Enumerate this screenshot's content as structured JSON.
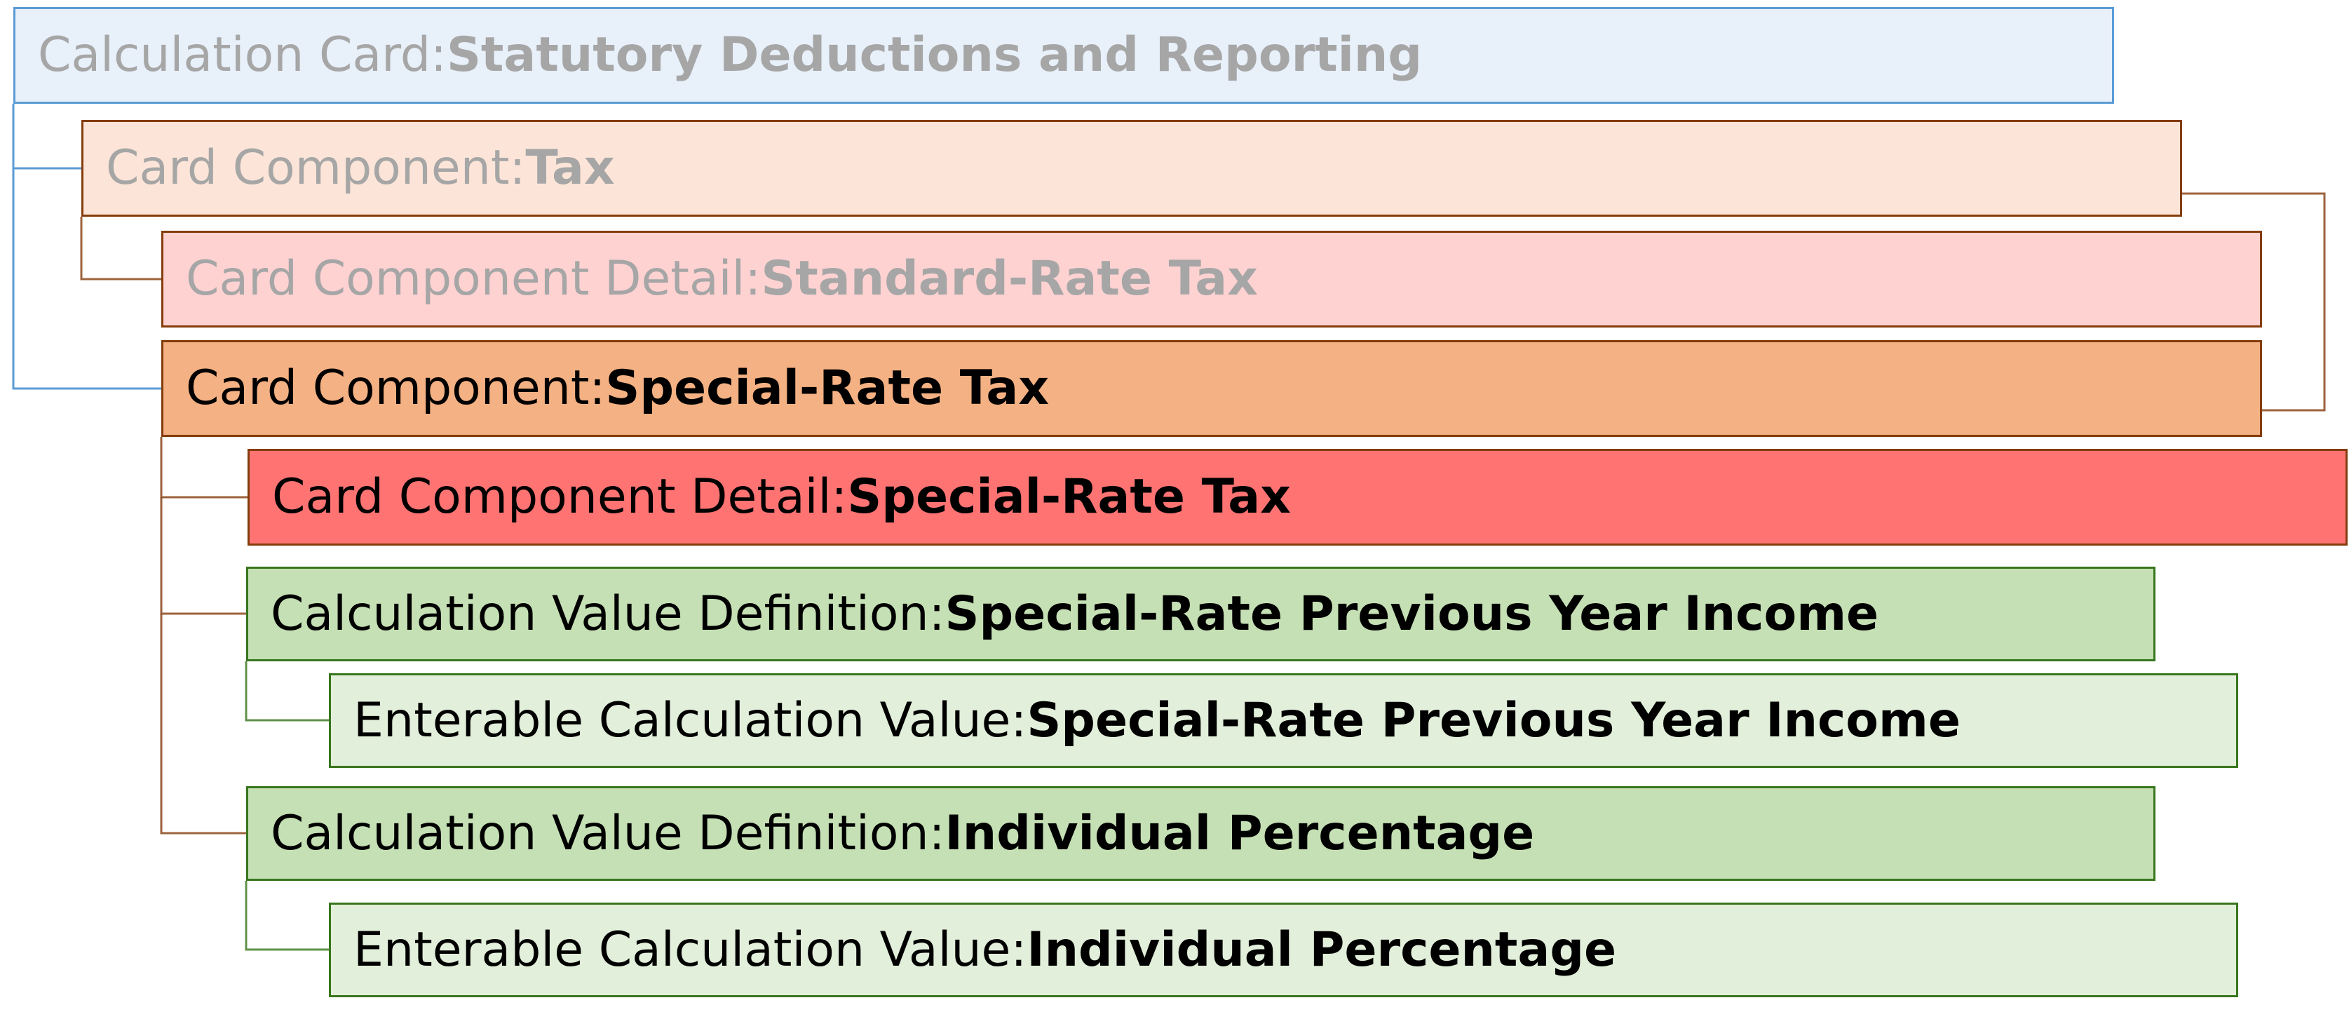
{
  "colors": {
    "calculation_card_fill": "#e8f0fa",
    "calculation_card_border": "#5b9bd5",
    "card_component_inactive_fill": "#fce5d8",
    "card_component_detail_inactive_fill": "#ffd2d2",
    "card_component_active_fill": "#f4b183",
    "card_component_detail_active_fill": "#ff7373",
    "component_border": "#843c0c",
    "value_definition_fill": "#c5e0b4",
    "enterable_value_fill": "#e2efda",
    "value_border": "#38761d",
    "muted_text": "#a6a6a6",
    "active_text": "#000000"
  },
  "nodes": [
    {
      "label": "Calculation Card: ",
      "name": "Statutory Deductions and Reporting",
      "muted": true
    },
    {
      "label": "Card Component: ",
      "name": "Tax",
      "muted": true
    },
    {
      "label": "Card Component Detail: ",
      "name": "Standard-Rate Tax",
      "muted": true
    },
    {
      "label": "Card Component: ",
      "name": "Special-Rate Tax",
      "muted": false
    },
    {
      "label": "Card Component Detail: ",
      "name": "Special-Rate Tax",
      "muted": false
    },
    {
      "label": "Calculation Value Definition: ",
      "name": "Special-Rate Previous Year Income",
      "muted": false
    },
    {
      "label": "Enterable Calculation Value: ",
      "name": "Special-Rate Previous Year Income",
      "muted": false
    },
    {
      "label": "Calculation Value Definition: ",
      "name": "Individual Percentage",
      "muted": false
    },
    {
      "label": "Enterable Calculation Value: ",
      "name": "Individual Percentage",
      "muted": false
    }
  ]
}
